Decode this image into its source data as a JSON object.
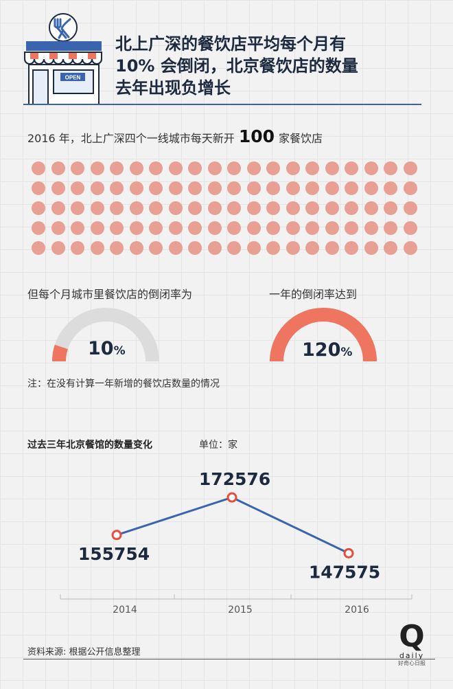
{
  "header": {
    "title_lines": [
      "北上广深的餐饮店平均每个月有",
      "10% 会倒闭，北京餐饮店的数量",
      "去年出现负增长"
    ],
    "sign_text": "OPEN"
  },
  "intro": {
    "prefix": "2016 年，北上广深四个一线城市每天新开",
    "number": "100",
    "suffix": "家餐饮店",
    "dot_count": 100,
    "dot_color": "#e9a094"
  },
  "gauges": {
    "left": {
      "label": "但每个月城市里餐饮店的倒闭率为",
      "value": "10",
      "unit": "%",
      "fraction": 0.1
    },
    "right": {
      "label": "一年的倒闭率达到",
      "value": "120",
      "unit": "%",
      "fraction": 1.0
    },
    "fill_color": "#ee7560",
    "track_color": "#dcdcdc"
  },
  "note": "注：在没有计算一年新增的餐饮店数量的情况",
  "chart_section": {
    "title": "过去三年北京餐馆的数量变化",
    "unit": "单位：家"
  },
  "chart_data": {
    "type": "line",
    "categories": [
      "2014",
      "2015",
      "2016"
    ],
    "values": [
      155754,
      172576,
      147575
    ],
    "title": "过去三年北京餐馆的数量变化",
    "unit": "单位：家",
    "line_color": "#3a64ad",
    "marker_color": "#e84c3d",
    "grid": false
  },
  "footer": {
    "source": "资料来源: 根据公开信息整理",
    "logo_letter": "Q",
    "logo_word": "daily",
    "logo_cn": "好奇心日报"
  }
}
